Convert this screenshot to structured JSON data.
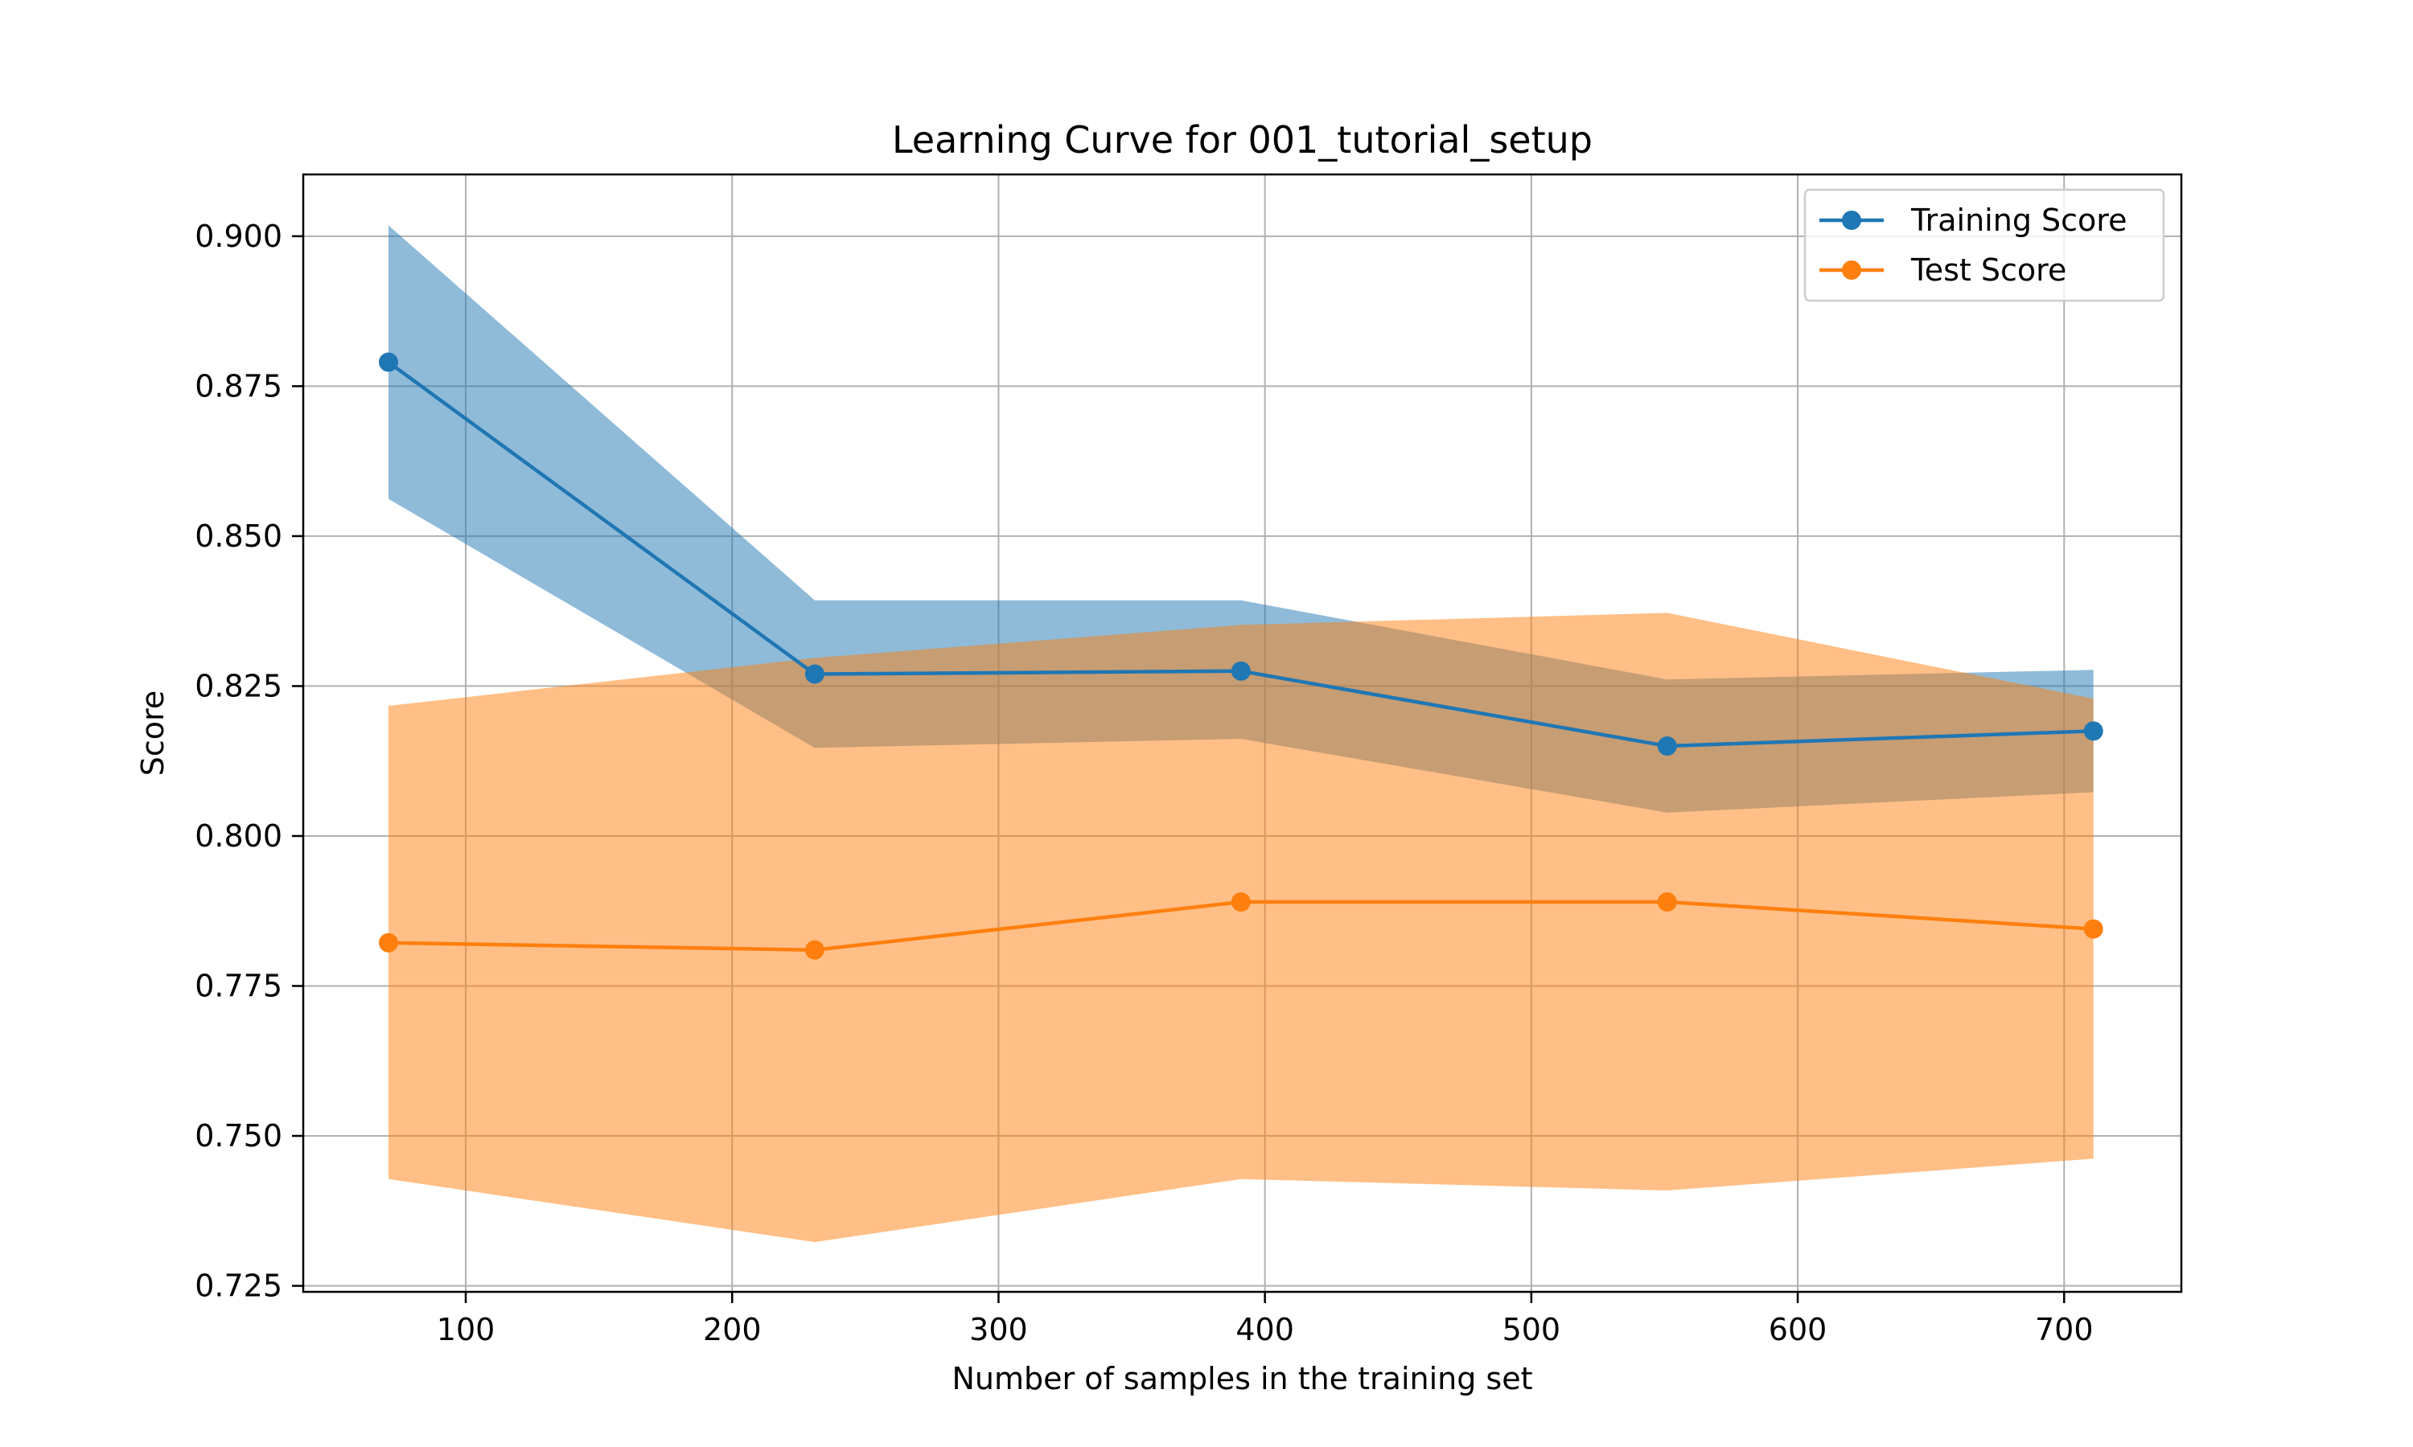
{
  "chart_data": {
    "type": "line",
    "title": "Learning Curve for 001_tutorial_setup",
    "xlabel": "Number of samples in the training set",
    "ylabel": "Score",
    "xlim": [
      39,
      744
    ],
    "ylim": [
      0.724,
      0.9103
    ],
    "x_ticks": [
      100,
      200,
      300,
      400,
      500,
      600,
      700
    ],
    "y_ticks": [
      0.725,
      0.75,
      0.775,
      0.8,
      0.825,
      0.85,
      0.875,
      0.9
    ],
    "y_tick_labels": [
      "0.725",
      "0.750",
      "0.775",
      "0.800",
      "0.825",
      "0.850",
      "0.875",
      "0.900"
    ],
    "grid": true,
    "legend_position": "top-right",
    "x": [
      71,
      231,
      391,
      551,
      711
    ],
    "series": [
      {
        "name": "Training Score",
        "color": "#1f77b4",
        "band_color": "#1f77b4",
        "band_opacity": 0.5,
        "values": [
          0.879,
          0.827,
          0.8275,
          0.815,
          0.8175
        ],
        "band_lower": [
          0.8562,
          0.8147,
          0.8162,
          0.8039,
          0.8073
        ],
        "band_upper": [
          0.9018,
          0.8393,
          0.8393,
          0.8261,
          0.8277
        ]
      },
      {
        "name": "Test Score",
        "color": "#ff7f0e",
        "band_color": "#ff7f0e",
        "band_opacity": 0.5,
        "values": [
          0.7822,
          0.781,
          0.789,
          0.789,
          0.7845
        ],
        "band_lower": [
          0.7428,
          0.7323,
          0.7428,
          0.7409,
          0.7462
        ],
        "band_upper": [
          0.8217,
          0.8297,
          0.8352,
          0.8372,
          0.8229
        ]
      }
    ]
  }
}
